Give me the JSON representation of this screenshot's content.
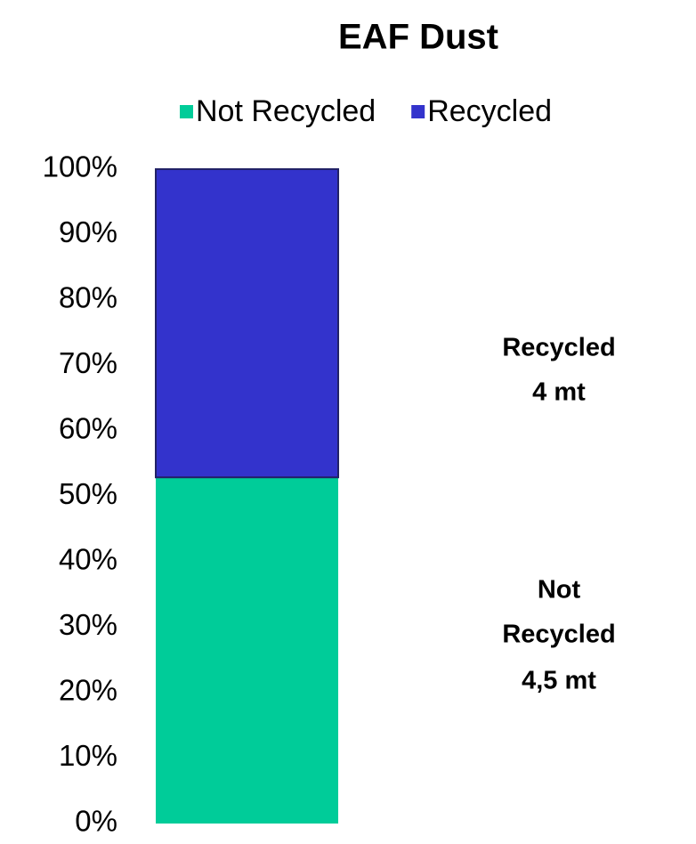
{
  "chart_data": {
    "type": "stacked_bar",
    "title": "EAF Dust",
    "categories": [
      null
    ],
    "series": [
      {
        "name": "Not Recycled",
        "color": "#00cc99",
        "values": [
          52.9
        ]
      },
      {
        "name": "Recycled",
        "color": "#3333cc",
        "values": [
          47.1
        ]
      }
    ],
    "ylim": [
      0,
      100
    ],
    "yticks": [
      {
        "value": 0,
        "label": "0%"
      },
      {
        "value": 10,
        "label": "10%"
      },
      {
        "value": 20,
        "label": "20%"
      },
      {
        "value": 30,
        "label": "30%"
      },
      {
        "value": 40,
        "label": "40%"
      },
      {
        "value": 50,
        "label": "50%"
      },
      {
        "value": 60,
        "label": "60%"
      },
      {
        "value": 70,
        "label": "70%"
      },
      {
        "value": 80,
        "label": "80%"
      },
      {
        "value": 90,
        "label": "90%"
      },
      {
        "value": 100,
        "label": "100%"
      }
    ],
    "legend": "top",
    "annotations": [
      {
        "lines": [
          "Recycled",
          "4 mt"
        ]
      },
      {
        "lines": [
          "Not",
          "Recycled",
          "4,5 mt"
        ]
      }
    ]
  }
}
